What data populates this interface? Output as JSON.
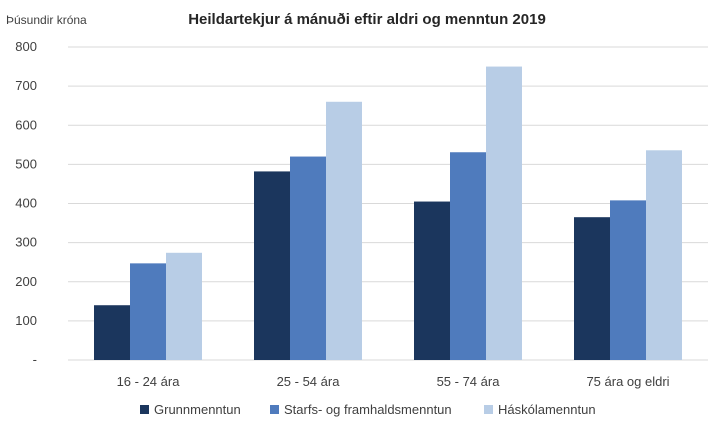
{
  "chart_data": {
    "type": "bar",
    "title": "Heildartekjur á mánuði eftir aldri og menntun 2019",
    "ylabel": "Þúsundir króna",
    "xlabel": "",
    "categories": [
      "16 - 24 ára",
      "25 - 54 ára",
      "55 - 74 ára",
      "75 ára og eldri"
    ],
    "series": [
      {
        "name": "Grunnmenntun",
        "color": "#1b365d",
        "values": [
          140,
          482,
          405,
          365
        ]
      },
      {
        "name": "Starfs- og framhaldsmenntun",
        "color": "#4f7bbd",
        "values": [
          247,
          520,
          531,
          408
        ]
      },
      {
        "name": "Háskólamenntun",
        "color": "#b8cde6",
        "values": [
          274,
          660,
          750,
          536
        ]
      }
    ],
    "ylim": [
      0,
      800
    ],
    "yticks": [
      {
        "value": 0,
        "label": "-"
      },
      {
        "value": 100,
        "label": "100"
      },
      {
        "value": 200,
        "label": "200"
      },
      {
        "value": 300,
        "label": "300"
      },
      {
        "value": 400,
        "label": "400"
      },
      {
        "value": 500,
        "label": "500"
      },
      {
        "value": 600,
        "label": "600"
      },
      {
        "value": 700,
        "label": "700"
      },
      {
        "value": 800,
        "label": "800"
      }
    ],
    "grid": true,
    "gridColor": "#d9d9d9",
    "legend": "bottom"
  }
}
